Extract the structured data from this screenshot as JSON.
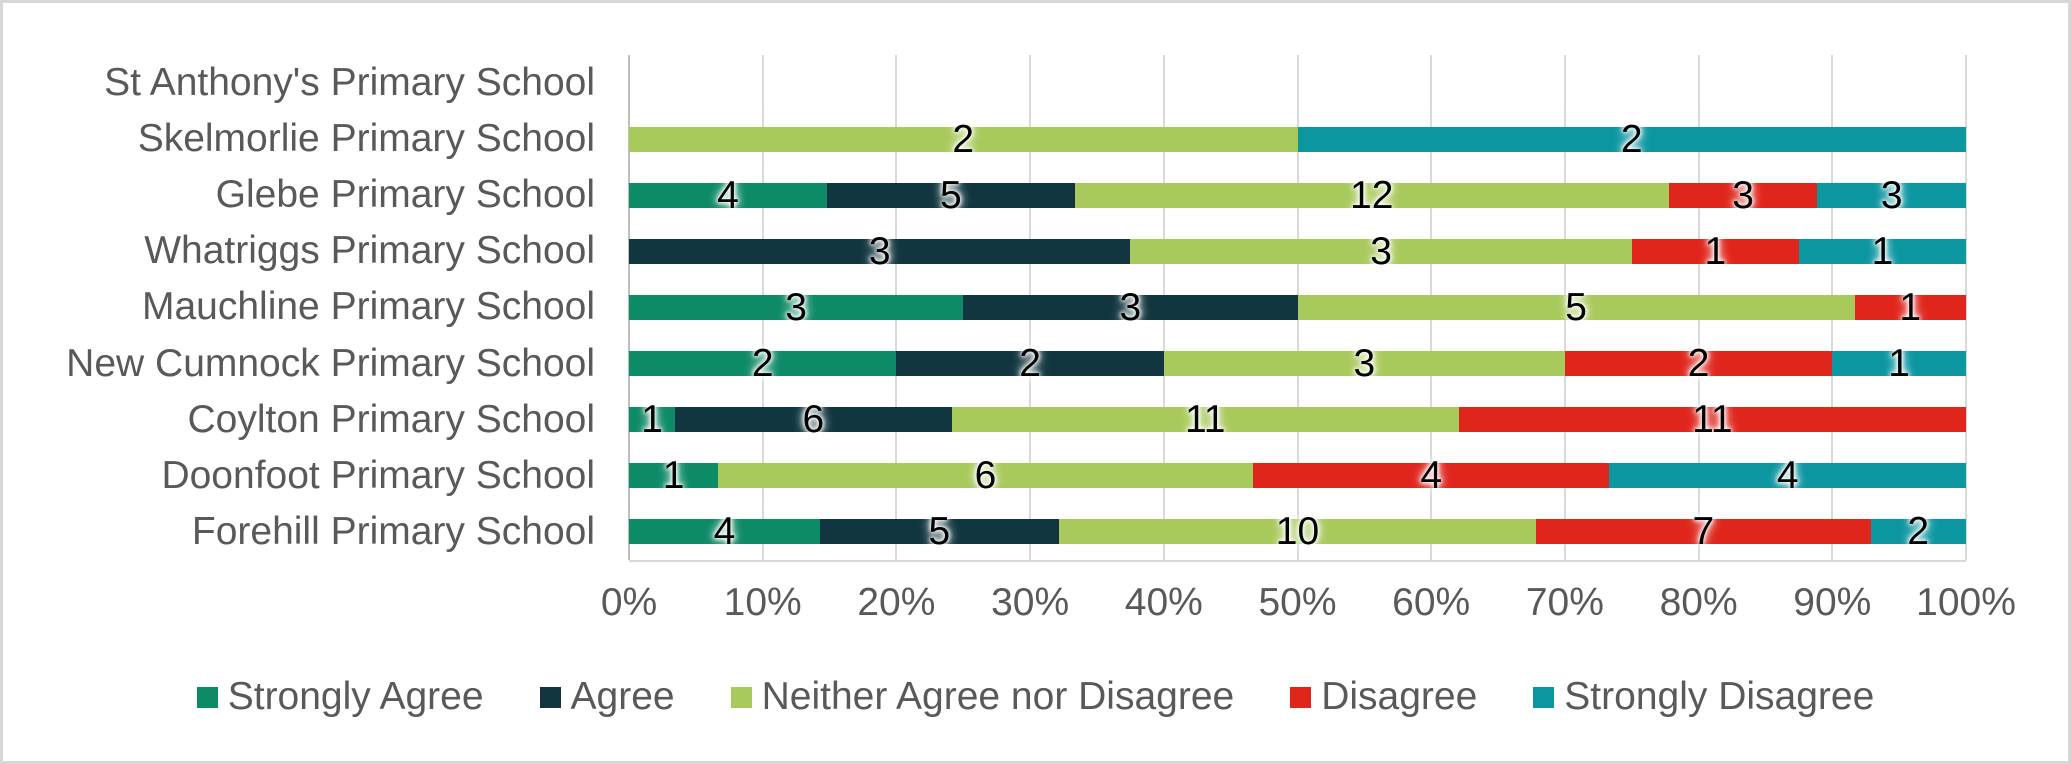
{
  "chart_data": {
    "type": "bar",
    "variant": "horizontal-stacked-100-percent",
    "title": "",
    "categories": [
      "St Anthony's Primary School",
      "Skelmorlie Primary School",
      "Glebe Primary School",
      "Whatriggs Primary School",
      "Mauchline Primary School",
      "New Cumnock Primary School",
      "Coylton Primary School",
      "Doonfoot Primary School",
      "Forehill Primary School"
    ],
    "series": [
      {
        "name": "Strongly Agree",
        "color": "#0d8a66",
        "values": [
          0,
          0,
          4,
          0,
          3,
          2,
          1,
          1,
          4
        ]
      },
      {
        "name": "Agree",
        "color": "#11363f",
        "values": [
          0,
          0,
          5,
          3,
          3,
          2,
          6,
          0,
          5
        ]
      },
      {
        "name": "Neither Agree nor Disagree",
        "color": "#a8c95b",
        "values": [
          0,
          2,
          12,
          3,
          5,
          3,
          11,
          6,
          10
        ]
      },
      {
        "name": "Disagree",
        "color": "#e0251c",
        "values": [
          0,
          0,
          3,
          1,
          1,
          2,
          11,
          4,
          7
        ]
      },
      {
        "name": "Strongly Disagree",
        "color": "#0b96a0",
        "values": [
          0,
          2,
          3,
          1,
          0,
          1,
          0,
          4,
          2
        ]
      }
    ],
    "data_labels": "segment counts shown on bars",
    "x_ticks": [
      "0%",
      "10%",
      "20%",
      "30%",
      "40%",
      "50%",
      "60%",
      "70%",
      "80%",
      "90%",
      "100%"
    ],
    "xlim": [
      0,
      100
    ],
    "grid": true,
    "legend_position": "bottom"
  },
  "colors": {
    "category_text": "#595959",
    "axis_text": "#595959",
    "gridline": "#d9d9d9",
    "axis_line": "#bfbfbf",
    "data_label_text": "#000000",
    "background": "#ffffff",
    "frame_border": "#d7d7d7"
  }
}
